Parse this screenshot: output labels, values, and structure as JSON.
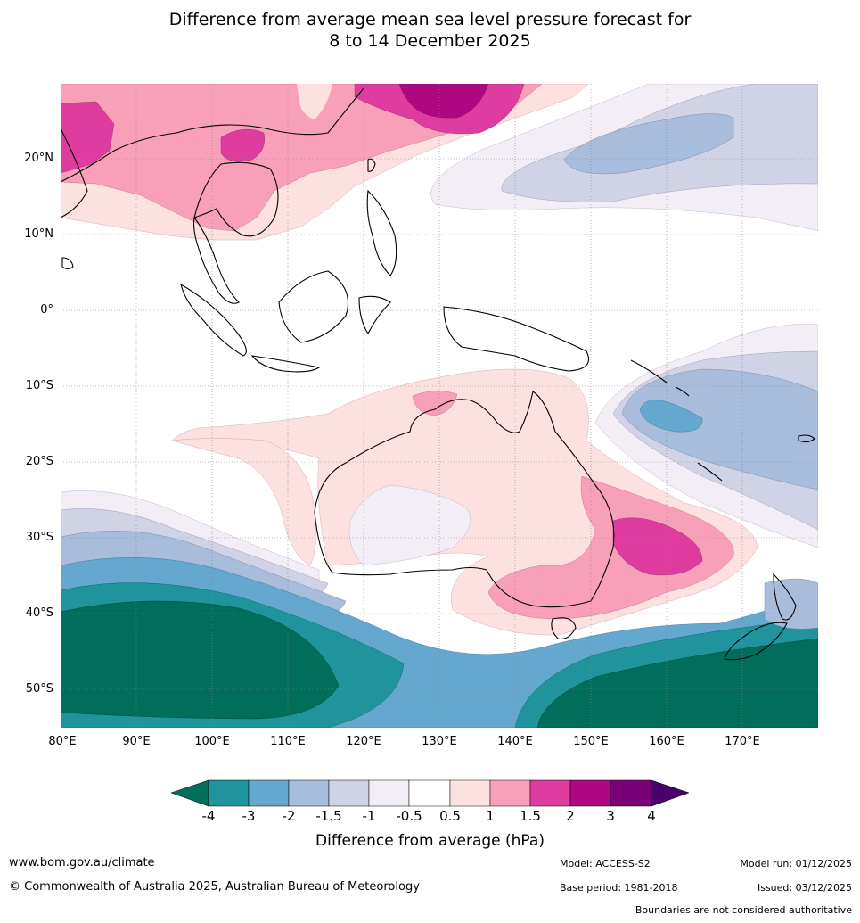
{
  "title": {
    "line1": "Difference from average mean sea level pressure forecast for",
    "line2": "8 to 14 December 2025"
  },
  "map": {
    "lat_labels": [
      "20°N",
      "10°N",
      "0°",
      "10°S",
      "20°S",
      "30°S",
      "40°S",
      "50°S"
    ],
    "lon_labels": [
      "80°E",
      "90°E",
      "100°E",
      "110°E",
      "120°E",
      "130°E",
      "140°E",
      "150°E",
      "160°E",
      "170°E"
    ]
  },
  "colorbar": {
    "title": "Difference from average (hPa)",
    "ticks": [
      "-4",
      "-3",
      "-2",
      "-1.5",
      "-1",
      "-0.5",
      "0.5",
      "1",
      "1.5",
      "2",
      "3",
      "4"
    ],
    "colors": {
      "neg_4_ext": "#006e5a",
      "neg_4_3": "#1f949c",
      "neg_3_2": "#64a8d0",
      "neg_2_15": "#a8bcdc",
      "neg_15_1": "#d0d2e6",
      "neg_1_05": "#f3eef6",
      "neutral": "#ffffff",
      "pos_05_1": "#fde0e0",
      "pos_1_15": "#f8a0ba",
      "pos_15_2": "#de3c9e",
      "pos_2_3": "#ad0882",
      "pos_3_4": "#7a0078",
      "pos_4_ext": "#4a006a"
    }
  },
  "footer": {
    "url": "www.bom.gov.au/climate",
    "copyright": "© Commonwealth of Australia 2025, Australian Bureau of Meteorology",
    "model": "Model: ACCESS-S2",
    "base_period": "Base period: 1981-2018",
    "model_run": "Model run: 01/12/2025",
    "issued": "Issued: 03/12/2025",
    "disclaimer": "Boundaries are not considered authoritative"
  }
}
